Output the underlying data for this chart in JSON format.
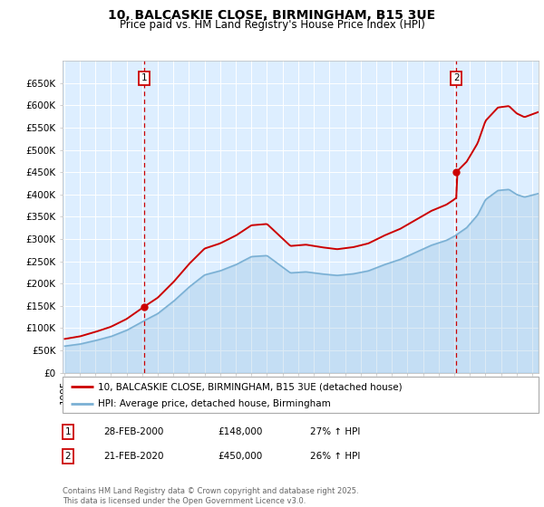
{
  "title": "10, BALCASKIE CLOSE, BIRMINGHAM, B15 3UE",
  "subtitle": "Price paid vs. HM Land Registry's House Price Index (HPI)",
  "ylim": [
    0,
    700000
  ],
  "yticks": [
    0,
    50000,
    100000,
    150000,
    200000,
    250000,
    300000,
    350000,
    400000,
    450000,
    500000,
    550000,
    600000,
    650000
  ],
  "ytick_labels": [
    "£0",
    "£50K",
    "£100K",
    "£150K",
    "£200K",
    "£250K",
    "£300K",
    "£350K",
    "£400K",
    "£450K",
    "£500K",
    "£550K",
    "£600K",
    "£650K"
  ],
  "red_color": "#cc0000",
  "blue_color": "#7ab0d4",
  "bg_color": "#ddeeff",
  "grid_color": "#ffffff",
  "purchase1_date": 2000.12,
  "purchase1_value": 148000,
  "purchase2_date": 2020.12,
  "purchase2_value": 450000,
  "legend_red": "10, BALCASKIE CLOSE, BIRMINGHAM, B15 3UE (detached house)",
  "legend_blue": "HPI: Average price, detached house, Birmingham",
  "annotation1_label": "1",
  "annotation2_label": "2",
  "table_row1": [
    "1",
    "28-FEB-2000",
    "£148,000",
    "27% ↑ HPI"
  ],
  "table_row2": [
    "2",
    "21-FEB-2020",
    "£450,000",
    "26% ↑ HPI"
  ],
  "footer": "Contains HM Land Registry data © Crown copyright and database right 2025.\nThis data is licensed under the Open Government Licence v3.0.",
  "title_fontsize": 10,
  "subtitle_fontsize": 8.5,
  "tick_fontsize": 7.5,
  "legend_fontsize": 7.5,
  "hpi_knots_t": [
    1995.0,
    1996.0,
    1997.0,
    1998.0,
    1999.0,
    2000.0,
    2001.0,
    2002.0,
    2003.0,
    2004.0,
    2005.0,
    2006.0,
    2007.0,
    2008.0,
    2008.8,
    2009.5,
    2010.5,
    2011.5,
    2012.5,
    2013.5,
    2014.5,
    2015.5,
    2016.5,
    2017.5,
    2018.5,
    2019.5,
    2020.0,
    2020.8,
    2021.5,
    2022.0,
    2022.8,
    2023.5,
    2024.0,
    2024.5,
    2025.4
  ],
  "hpi_knots_v": [
    52,
    56,
    63,
    71,
    83,
    100,
    116,
    140,
    168,
    192,
    200,
    212,
    228,
    230,
    212,
    196,
    198,
    194,
    191,
    194,
    200,
    212,
    222,
    236,
    250,
    260,
    268,
    285,
    310,
    340,
    358,
    360,
    350,
    345,
    352
  ]
}
